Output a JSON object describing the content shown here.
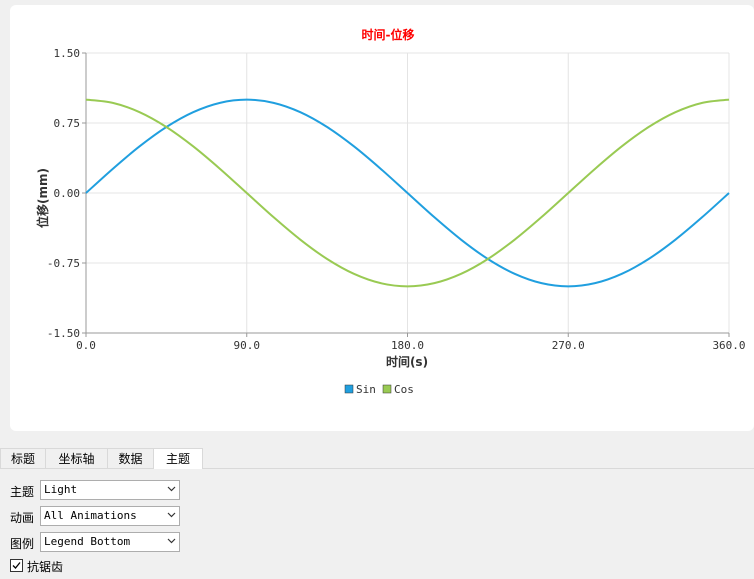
{
  "chart_data": {
    "type": "line",
    "title": "时间-位移",
    "xlabel": "时间(s)",
    "ylabel": "位移(mm)",
    "xlim": [
      0,
      360
    ],
    "ylim": [
      -1.5,
      1.5
    ],
    "x_ticks": [
      "0.0",
      "90.0",
      "180.0",
      "270.0",
      "360.0"
    ],
    "y_ticks": [
      "1.50",
      "0.75",
      "0.00",
      "-0.75",
      "-1.50"
    ],
    "grid": true,
    "legend_position": "bottom",
    "x": [
      0,
      15,
      30,
      45,
      60,
      75,
      90,
      105,
      120,
      135,
      150,
      165,
      180,
      195,
      210,
      225,
      240,
      255,
      270,
      285,
      300,
      315,
      330,
      345,
      360
    ],
    "series": [
      {
        "name": "Sin",
        "color": "#209fdf",
        "values": [
          0,
          0.259,
          0.5,
          0.707,
          0.866,
          0.966,
          1,
          0.966,
          0.866,
          0.707,
          0.5,
          0.259,
          0,
          -0.259,
          -0.5,
          -0.707,
          -0.866,
          -0.966,
          -1,
          -0.966,
          -0.866,
          -0.707,
          -0.5,
          -0.259,
          0
        ]
      },
      {
        "name": "Cos",
        "color": "#99ca53",
        "values": [
          1,
          0.966,
          0.866,
          0.707,
          0.5,
          0.259,
          0,
          -0.259,
          -0.5,
          -0.707,
          -0.866,
          -0.966,
          -1,
          -0.966,
          -0.866,
          -0.707,
          -0.5,
          -0.259,
          0,
          0.259,
          0.5,
          0.707,
          0.866,
          0.966,
          1
        ]
      }
    ]
  },
  "colors": {
    "title": "#ff0000",
    "grid": "#e4e4e4",
    "axis": "#999999"
  },
  "tabs": [
    {
      "label": "标题",
      "active": false
    },
    {
      "label": "坐标轴",
      "active": false
    },
    {
      "label": "数据",
      "active": false
    },
    {
      "label": "主题",
      "active": true
    }
  ],
  "theme_panel": {
    "theme_label": "主题",
    "theme_value": "Light",
    "animation_label": "动画",
    "animation_value": "All Animations",
    "legend_label": "图例",
    "legend_value": "Legend Bottom",
    "antialias_label": "抗锯齿",
    "antialias_checked": true
  }
}
